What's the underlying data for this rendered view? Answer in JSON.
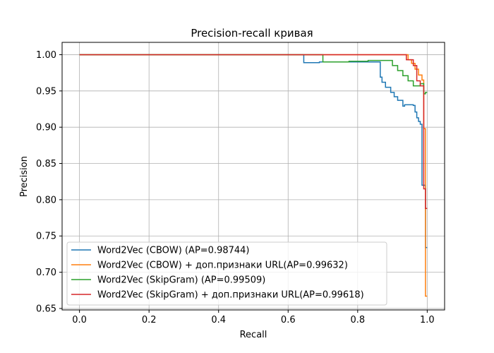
{
  "chart_data": {
    "type": "line",
    "title": "Precision-recall кривая",
    "xlabel": "Recall",
    "ylabel": "Precision",
    "xlim": [
      -0.05,
      1.05
    ],
    "ylim": [
      0.648,
      1.017
    ],
    "xticks": [
      0.0,
      0.2,
      0.4,
      0.6,
      0.8,
      1.0
    ],
    "xtick_labels": [
      "0.0",
      "0.2",
      "0.4",
      "0.6",
      "0.8",
      "1.0"
    ],
    "yticks": [
      0.65,
      0.7,
      0.75,
      0.8,
      0.85,
      0.9,
      0.95,
      1.0
    ],
    "ytick_labels": [
      "0.65",
      "0.70",
      "0.75",
      "0.80",
      "0.85",
      "0.90",
      "0.95",
      "1.00"
    ],
    "grid": true,
    "legend_position": "lower-left",
    "series": [
      {
        "name": "Word2Vec (CBOW) (AP=0.98744)",
        "color": "#1f77b4",
        "x": [
          0.0,
          0.645,
          0.645,
          0.69,
          0.69,
          0.865,
          0.865,
          0.87,
          0.87,
          0.88,
          0.88,
          0.895,
          0.895,
          0.905,
          0.905,
          0.915,
          0.915,
          0.93,
          0.93,
          0.935,
          0.935,
          0.96,
          0.96,
          0.965,
          0.965,
          0.97,
          0.97,
          0.975,
          0.975,
          0.98,
          0.98,
          0.985,
          0.985,
          0.995,
          0.995,
          1.0
        ],
        "y": [
          1.0,
          1.0,
          0.989,
          0.989,
          0.99,
          0.99,
          0.969,
          0.969,
          0.962,
          0.962,
          0.955,
          0.955,
          0.948,
          0.948,
          0.942,
          0.942,
          0.937,
          0.937,
          0.929,
          0.929,
          0.931,
          0.931,
          0.93,
          0.93,
          0.921,
          0.921,
          0.913,
          0.913,
          0.908,
          0.908,
          0.904,
          0.904,
          0.82,
          0.82,
          0.734,
          0.734
        ]
      },
      {
        "name": "Word2Vec (CBOW) + доп.признаки URL(AP=0.99632)",
        "color": "#ff7f0e",
        "x": [
          0.0,
          0.945,
          0.945,
          0.955,
          0.955,
          0.965,
          0.965,
          0.975,
          0.975,
          0.985,
          0.985,
          0.99,
          0.99,
          0.995,
          0.995,
          1.0
        ],
        "y": [
          1.0,
          1.0,
          0.993,
          0.993,
          0.988,
          0.988,
          0.98,
          0.98,
          0.972,
          0.972,
          0.965,
          0.965,
          0.898,
          0.898,
          0.667,
          0.667
        ]
      },
      {
        "name": "Word2Vec (SkipGram) (AP=0.99509)",
        "color": "#2ca02c",
        "x": [
          0.0,
          0.7,
          0.7,
          0.755,
          0.755,
          0.775,
          0.775,
          0.83,
          0.83,
          0.9,
          0.9,
          0.915,
          0.915,
          0.93,
          0.93,
          0.945,
          0.945,
          0.96,
          0.96,
          0.98,
          0.98,
          0.99,
          0.99,
          0.995,
          0.995,
          1.0
        ],
        "y": [
          1.0,
          1.0,
          0.99,
          0.99,
          0.99,
          0.99,
          0.991,
          0.991,
          0.992,
          0.992,
          0.985,
          0.985,
          0.978,
          0.978,
          0.971,
          0.971,
          0.964,
          0.964,
          0.957,
          0.957,
          0.96,
          0.96,
          0.946,
          0.946,
          0.948,
          0.948
        ]
      },
      {
        "name": "Word2Vec (SkipGram) + доп.признаки URL(AP=0.99618)",
        "color": "#d62728",
        "x": [
          0.0,
          0.94,
          0.94,
          0.96,
          0.96,
          0.97,
          0.97,
          0.98,
          0.98,
          0.99,
          0.99,
          0.995,
          0.995,
          1.0
        ],
        "y": [
          1.0,
          1.0,
          0.993,
          0.993,
          0.985,
          0.985,
          0.964,
          0.964,
          0.957,
          0.957,
          0.815,
          0.815,
          0.788,
          0.788
        ]
      }
    ]
  }
}
